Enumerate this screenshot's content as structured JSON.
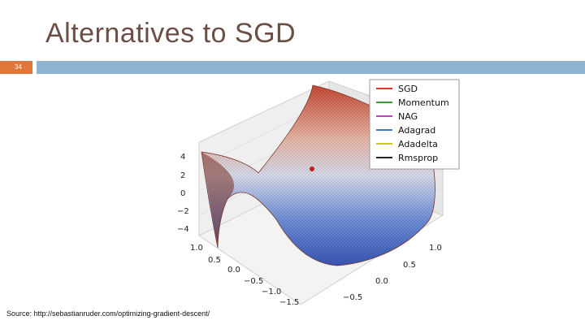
{
  "slide": {
    "title": "Alternatives to SGD",
    "number": "34",
    "accent_color": "#e0763a",
    "bar_color": "#8fb3d3",
    "source": "Source: http://sebastianruder.com/optimizing-gradient-descent/"
  },
  "chart_data": {
    "type": "surface",
    "z_ticks": [
      "4",
      "2",
      "0",
      "−2",
      "−4"
    ],
    "x_ticks": [
      "1.0",
      "0.5",
      "0.0",
      "−0.5",
      "−1.0",
      "−1.5"
    ],
    "y_ticks": [
      "1.0",
      "0.5",
      "0.0",
      "−0.5"
    ],
    "legend": [
      {
        "name": "SGD",
        "color": "#e8302a"
      },
      {
        "name": "Momentum",
        "color": "#3a9a3a"
      },
      {
        "name": "NAG",
        "color": "#c040c0"
      },
      {
        "name": "Adagrad",
        "color": "#4a78c8"
      },
      {
        "name": "Adadelta",
        "color": "#c8c820"
      },
      {
        "name": "Rmsprop",
        "color": "#222222"
      }
    ]
  }
}
